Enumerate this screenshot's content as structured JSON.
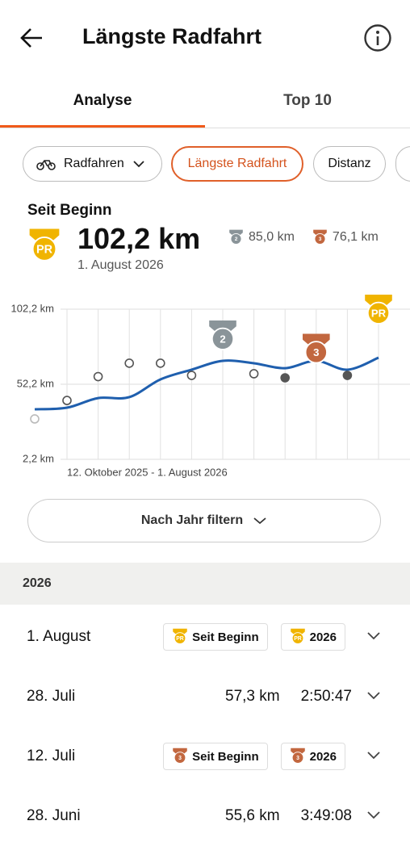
{
  "header": {
    "title": "Längste Radfahrt"
  },
  "tabs": [
    "Analyse",
    "Top 10"
  ],
  "filters": [
    "Radfahren",
    "Längste Radfahrt",
    "Distanz"
  ],
  "summary": {
    "title": "Seit Beginn",
    "value": "102,2 km",
    "date": "1. August 2026",
    "badge": {
      "label": "PR",
      "color": "#f0b400"
    },
    "others": [
      {
        "label": "2",
        "color": "#8a9499",
        "value": "85,0 km"
      },
      {
        "label": "3",
        "color": "#c2673f",
        "value": "76,1 km"
      }
    ]
  },
  "chart": {
    "type": "line",
    "date_range": "12. Oktober 2025 - 1. August 2026",
    "ylim": [
      2.2,
      102.2
    ],
    "yticks": [
      {
        "value": 102.2,
        "label": "102,2 km"
      },
      {
        "value": 52.2,
        "label": "52,2 km"
      },
      {
        "value": 2.2,
        "label": "2,2 km"
      }
    ],
    "line_color": "#1f5fae",
    "trend": [
      35.5,
      36.6,
      43,
      43.6,
      55.4,
      61.9,
      67.8,
      66.2,
      62.9,
      67.8,
      61.9,
      69.9
    ],
    "values": [
      29.1,
      41.4,
      57.3,
      66.2,
      66.2,
      58.1,
      85.0,
      59.2,
      56.5,
      76.1,
      58.1,
      102.2
    ],
    "medals": [
      null,
      null,
      null,
      null,
      null,
      null,
      {
        "label": "2",
        "color": "#8a9499"
      },
      null,
      null,
      {
        "label": "3",
        "color": "#c2673f"
      },
      null,
      {
        "label": "PR",
        "color": "#f0b400"
      }
    ]
  },
  "filter_button": "Nach Jahr filtern",
  "section": "2026",
  "rows": [
    {
      "date": "1. August",
      "badges": [
        {
          "label": "PR",
          "color": "#f0b400",
          "text": "Seit Beginn"
        },
        {
          "label": "PR",
          "color": "#f0b400",
          "text": "2026"
        }
      ]
    },
    {
      "date": "28. Juli",
      "distance": "57,3 km",
      "time": "2:50:47"
    },
    {
      "date": "12. Juli",
      "badges": [
        {
          "label": "3",
          "color": "#c2673f",
          "text": "Seit Beginn"
        },
        {
          "label": "3",
          "color": "#c2673f",
          "text": "2026"
        }
      ]
    },
    {
      "date": "28. Juni",
      "distance": "55,6 km",
      "time": "3:49:08"
    }
  ]
}
